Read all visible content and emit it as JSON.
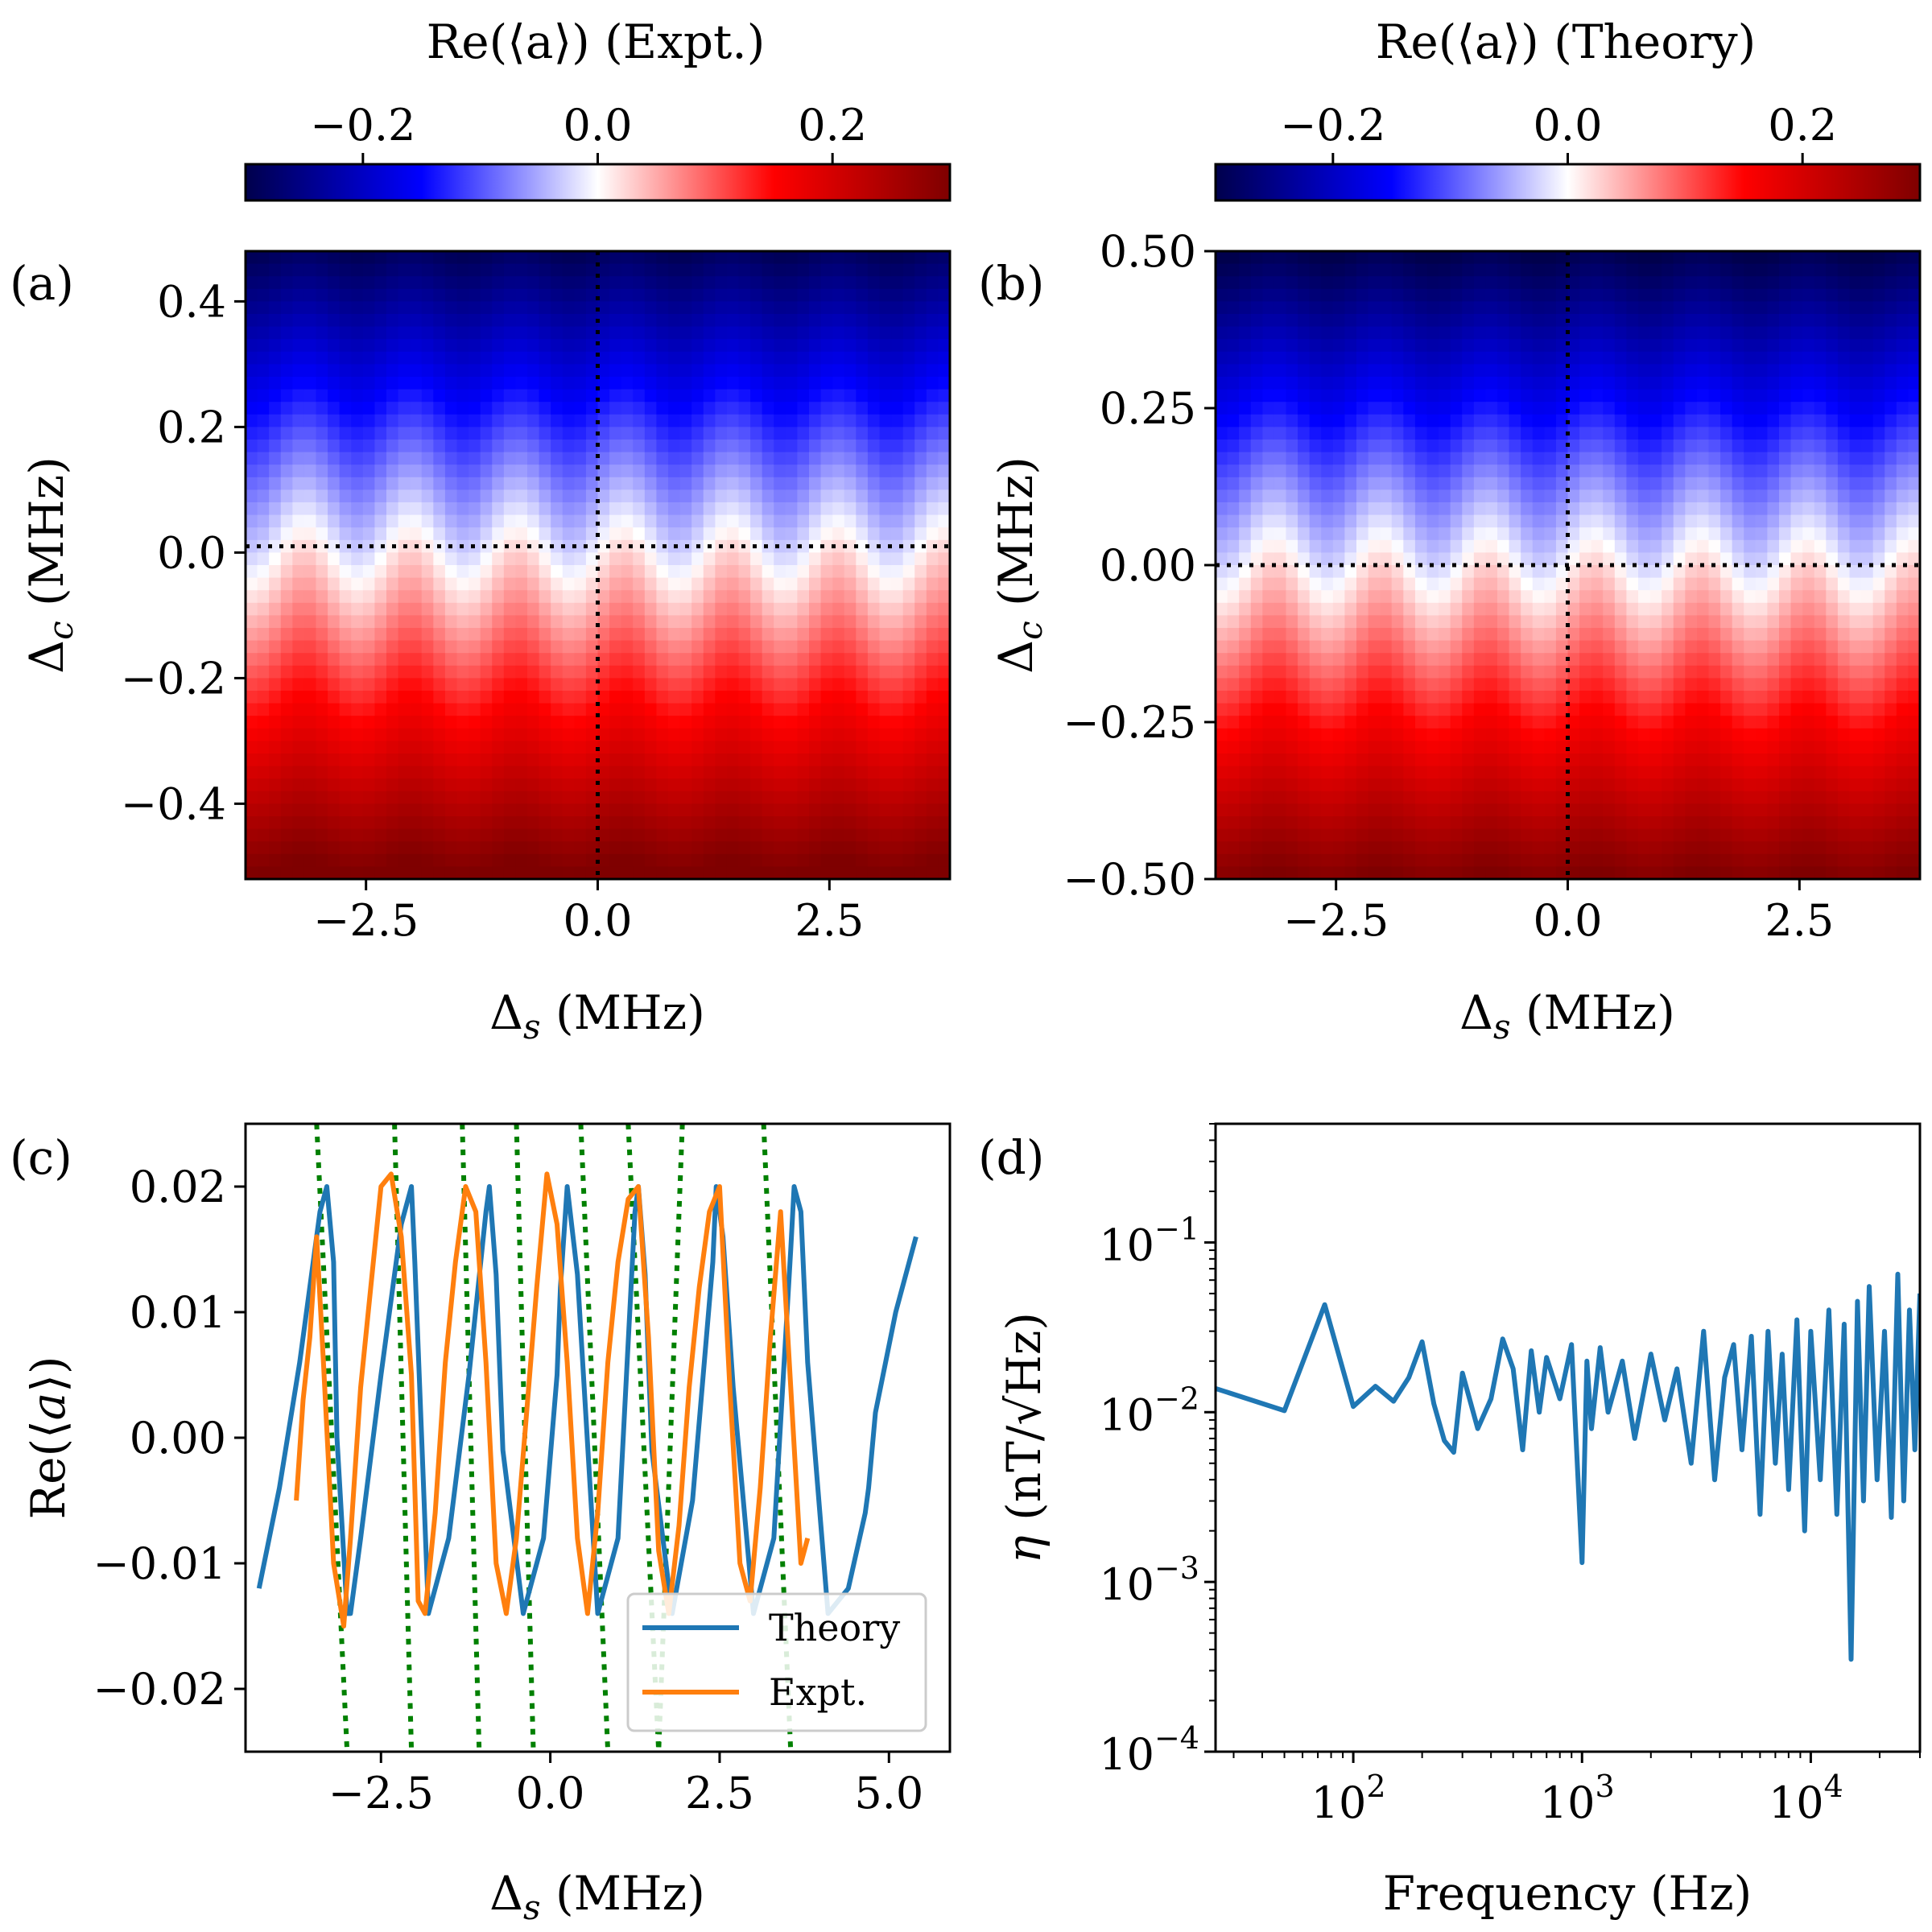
{
  "colors": {
    "theory": "#1f77b4",
    "expt": "#ff7f0e",
    "guides": "#008000",
    "refline": "#000000",
    "colormap": [
      "#00004c",
      "#0000ff",
      "#ffffff",
      "#ff0000",
      "#7f0000"
    ]
  },
  "chart_data": [
    {
      "panel": "(a)",
      "type": "heatmap",
      "title": "",
      "xlabel": "Δs (MHz)",
      "ylabel": "Δc (MHz)",
      "colorbar": {
        "label": "Re(⟨a⟩) (Expt.)",
        "ticks": [
          -0.2,
          0.0,
          0.2
        ],
        "tick_labels": [
          "−0.2",
          "0.0",
          "0.2"
        ],
        "range": [
          -0.3,
          0.3
        ],
        "colormap": "seismic"
      },
      "xlim": [
        -3.8,
        3.8
      ],
      "ylim": [
        -0.52,
        0.48
      ],
      "xticks": [
        -2.5,
        0.0,
        2.5
      ],
      "xtick_labels": [
        "−2.5",
        "0.0",
        "2.5"
      ],
      "yticks": [
        -0.4,
        -0.2,
        0.0,
        0.2,
        0.4
      ],
      "ytick_labels": [
        "−0.4",
        "−0.2",
        "0.0",
        "0.2",
        "0.4"
      ],
      "value_model": "Re(⟨a⟩) ≈ −0.6·Δc, with small ripple along Δs",
      "ripple_amplitude": 0.03,
      "ripple_period_MHz": 1.15,
      "reference_lines": {
        "vertical_x": 0.0,
        "horizontal_y": 0.01
      }
    },
    {
      "panel": "(b)",
      "type": "heatmap",
      "title": "",
      "xlabel": "Δs (MHz)",
      "ylabel": "Δc (MHz)",
      "colorbar": {
        "label": "Re(⟨a⟩) (Theory)",
        "ticks": [
          -0.2,
          0.0,
          0.2
        ],
        "tick_labels": [
          "−0.2",
          "0.0",
          "0.2"
        ],
        "range": [
          -0.3,
          0.3
        ],
        "colormap": "seismic"
      },
      "xlim": [
        -3.8,
        3.8
      ],
      "ylim": [
        -0.5,
        0.5
      ],
      "xticks": [
        -2.5,
        0.0,
        2.5
      ],
      "xtick_labels": [
        "−2.5",
        "0.0",
        "2.5"
      ],
      "yticks": [
        -0.5,
        -0.25,
        0.0,
        0.25,
        0.5
      ],
      "ytick_labels": [
        "−0.50",
        "−0.25",
        "0.00",
        "0.25",
        "0.50"
      ],
      "value_model": "Re(⟨a⟩) ≈ −0.6·Δc, with small ripple along Δs",
      "ripple_amplitude": 0.03,
      "ripple_period_MHz": 1.15,
      "reference_lines": {
        "vertical_x": 0.0,
        "horizontal_y": 0.0
      }
    },
    {
      "panel": "(c)",
      "type": "line",
      "title": "",
      "xlabel": "Δs (MHz)",
      "ylabel": "Re(⟨a⟩)",
      "xlim": [
        -4.5,
        5.9
      ],
      "ylim": [
        -0.025,
        0.025
      ],
      "xticks": [
        -2.5,
        0.0,
        2.5,
        5.0
      ],
      "xtick_labels": [
        "−2.5",
        "0.0",
        "2.5",
        "5.0"
      ],
      "yticks": [
        -0.02,
        -0.01,
        0.0,
        0.01,
        0.02
      ],
      "ytick_labels": [
        "−0.02",
        "−0.01",
        "0.00",
        "0.01",
        "0.02"
      ],
      "legend": {
        "placement": "lower-right",
        "entries": [
          "Theory",
          "Expt."
        ]
      },
      "series": [
        {
          "name": "Theory",
          "x": [
            -4.3,
            -4.0,
            -3.7,
            -3.4,
            -3.3,
            -3.2,
            -3.15,
            -3.0,
            -2.95,
            -2.8,
            -2.5,
            -2.2,
            -2.05,
            -2.0,
            -1.9,
            -1.8,
            -1.5,
            -1.2,
            -0.95,
            -0.9,
            -0.8,
            -0.7,
            -0.4,
            -0.1,
            0.1,
            0.15,
            0.25,
            0.4,
            0.7,
            1.0,
            1.25,
            1.3,
            1.4,
            1.5,
            1.8,
            2.1,
            2.4,
            2.45,
            2.55,
            2.7,
            3.0,
            3.3,
            3.55,
            3.6,
            3.7,
            3.8,
            4.1,
            4.4,
            4.65,
            4.7,
            4.8,
            5.1,
            5.4
          ],
          "y": [
            -0.012,
            -0.004,
            0.006,
            0.018,
            0.02,
            0.014,
            0.0,
            -0.014,
            -0.014,
            -0.008,
            0.005,
            0.017,
            0.02,
            0.014,
            0.0,
            -0.014,
            -0.008,
            0.005,
            0.018,
            0.02,
            0.013,
            -0.001,
            -0.014,
            -0.008,
            0.005,
            0.012,
            0.02,
            0.013,
            -0.014,
            -0.008,
            0.018,
            0.02,
            0.013,
            -0.001,
            -0.014,
            -0.005,
            0.014,
            0.02,
            0.016,
            0.004,
            -0.014,
            -0.008,
            0.015,
            0.02,
            0.018,
            0.006,
            -0.014,
            -0.012,
            -0.006,
            -0.004,
            0.002,
            0.01,
            0.016
          ]
        },
        {
          "name": "Expt.",
          "x": [
            -3.75,
            -3.65,
            -3.55,
            -3.45,
            -3.35,
            -3.2,
            -3.05,
            -2.95,
            -2.8,
            -2.65,
            -2.5,
            -2.35,
            -2.2,
            -2.05,
            -1.95,
            -1.85,
            -1.7,
            -1.55,
            -1.4,
            -1.25,
            -1.1,
            -0.95,
            -0.8,
            -0.65,
            -0.5,
            -0.35,
            -0.2,
            -0.05,
            0.1,
            0.25,
            0.4,
            0.55,
            0.7,
            0.85,
            1.0,
            1.15,
            1.3,
            1.45,
            1.6,
            1.75,
            1.9,
            2.05,
            2.2,
            2.35,
            2.5,
            2.65,
            2.8,
            2.95,
            3.1,
            3.25,
            3.4,
            3.55,
            3.7,
            3.8
          ],
          "y": [
            -0.005,
            0.003,
            0.008,
            0.016,
            0.006,
            -0.01,
            -0.015,
            -0.008,
            0.004,
            0.012,
            0.02,
            0.021,
            0.016,
            0.005,
            -0.013,
            -0.014,
            -0.006,
            0.006,
            0.014,
            0.02,
            0.018,
            0.006,
            -0.01,
            -0.014,
            -0.008,
            0.002,
            0.012,
            0.021,
            0.017,
            0.006,
            -0.008,
            -0.014,
            -0.006,
            0.006,
            0.014,
            0.019,
            0.02,
            0.008,
            -0.009,
            -0.014,
            -0.007,
            0.004,
            0.012,
            0.018,
            0.02,
            0.004,
            -0.01,
            -0.013,
            -0.004,
            0.008,
            0.018,
            0.004,
            -0.01,
            -0.008
          ]
        }
      ],
      "guide_lines": [
        {
          "x1": -3.45,
          "y1": 0.025,
          "x2": -3.0,
          "y2": -0.025
        },
        {
          "x1": -2.3,
          "y1": 0.025,
          "x2": -2.05,
          "y2": -0.025
        },
        {
          "x1": -1.3,
          "y1": 0.025,
          "x2": -1.05,
          "y2": -0.025
        },
        {
          "x1": -0.5,
          "y1": 0.025,
          "x2": -0.25,
          "y2": -0.025
        },
        {
          "x1": 0.45,
          "y1": 0.025,
          "x2": 0.85,
          "y2": -0.025
        },
        {
          "x1": 1.15,
          "y1": 0.025,
          "x2": 1.6,
          "y2": -0.025
        },
        {
          "x1": 1.95,
          "y1": 0.025,
          "x2": 1.6,
          "y2": -0.025
        },
        {
          "x1": 3.15,
          "y1": 0.025,
          "x2": 3.55,
          "y2": -0.025
        }
      ]
    },
    {
      "panel": "(d)",
      "type": "line",
      "title": "",
      "xlabel": "Frequency (Hz)",
      "ylabel": "η (nT/√Hz)",
      "xscale": "log",
      "yscale": "log",
      "xlim": [
        25,
        30000
      ],
      "ylim": [
        0.0001,
        0.5
      ],
      "xticks": [
        100,
        1000,
        10000
      ],
      "xtick_labels": [
        "10",
        "10",
        "10"
      ],
      "xtick_exponents": [
        "2",
        "3",
        "4"
      ],
      "yticks": [
        0.0001,
        0.001,
        0.01,
        0.1
      ],
      "ytick_labels": [
        "10",
        "10",
        "10",
        "10"
      ],
      "ytick_exponents": [
        "−4",
        "−3",
        "−2",
        "−1"
      ],
      "series": [
        {
          "name": "",
          "x": [
            25,
            50,
            75,
            100,
            125,
            150,
            175,
            200,
            225,
            250,
            275,
            300,
            350,
            400,
            450,
            500,
            550,
            600,
            650,
            700,
            800,
            900,
            1000,
            1050,
            1100,
            1200,
            1300,
            1500,
            1700,
            2000,
            2300,
            2600,
            3000,
            3400,
            3800,
            4200,
            4600,
            5000,
            5500,
            6000,
            6500,
            7000,
            7500,
            8000,
            8700,
            9400,
            10000,
            11000,
            12000,
            13000,
            14000,
            15000,
            16000,
            17000,
            18000,
            19500,
            21000,
            22500,
            24000,
            25500,
            27000,
            28500,
            30000
          ],
          "y": [
            0.0138,
            0.0102,
            0.043,
            0.0108,
            0.0142,
            0.0116,
            0.016,
            0.026,
            0.0112,
            0.0068,
            0.0058,
            0.017,
            0.008,
            0.012,
            0.027,
            0.018,
            0.006,
            0.023,
            0.01,
            0.021,
            0.012,
            0.025,
            0.0013,
            0.02,
            0.008,
            0.024,
            0.01,
            0.02,
            0.007,
            0.022,
            0.009,
            0.018,
            0.005,
            0.03,
            0.004,
            0.016,
            0.025,
            0.006,
            0.028,
            0.0025,
            0.03,
            0.005,
            0.022,
            0.0035,
            0.035,
            0.002,
            0.03,
            0.004,
            0.04,
            0.0025,
            0.033,
            0.00035,
            0.045,
            0.003,
            0.055,
            0.004,
            0.03,
            0.0024,
            0.065,
            0.003,
            0.04,
            0.006,
            0.05
          ]
        }
      ]
    }
  ]
}
